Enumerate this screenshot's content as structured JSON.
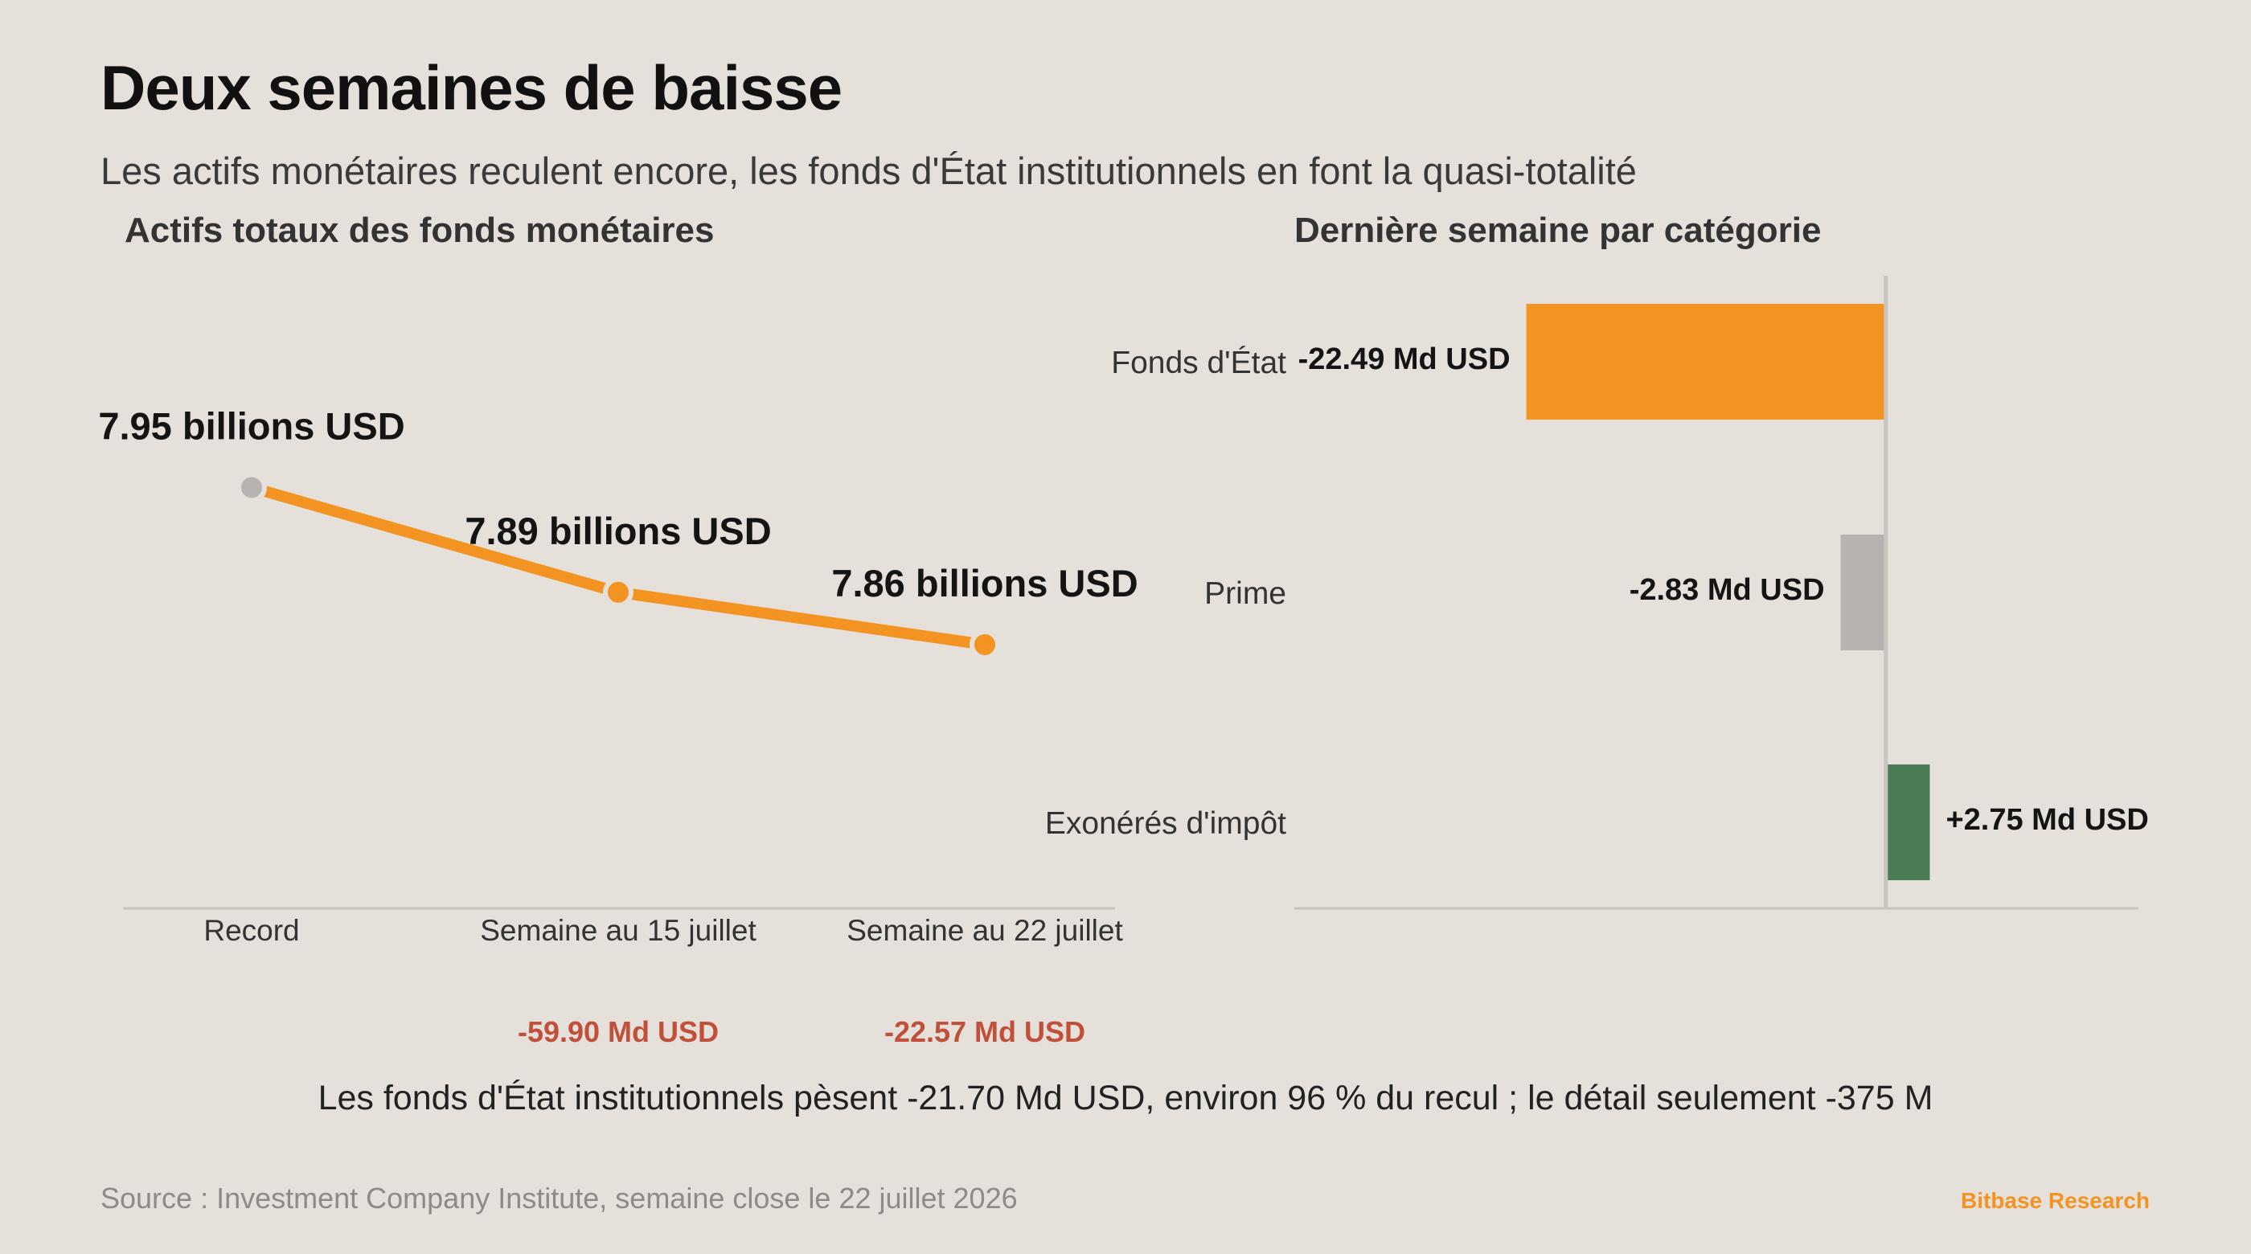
{
  "title": "Deux semaines de baisse",
  "subtitle": "Les actifs monétaires reculent encore, les fonds d'État institutionnels en font la quasi-totalité",
  "caption": "Les fonds d'État institutionnels pèsent -21.70 Md USD, environ 96 % du recul ; le détail seulement -375 M",
  "source": "Source : Investment Company Institute, semaine close le 22 juillet 2026",
  "brand": "Bitbase Research",
  "colors": {
    "background": "#e5e0da",
    "accent": "#f39322",
    "neutral": "#b6b3b0",
    "positive": "#4a7d56",
    "negative_text": "#c0503a",
    "axis": "#c8c3bd"
  },
  "chart_data": [
    {
      "type": "line",
      "title": "Actifs totaux des fonds monétaires",
      "categories": [
        "Record",
        "Semaine au 15 juillet",
        "Semaine au 22 juillet"
      ],
      "values": [
        7.95,
        7.89,
        7.86
      ],
      "unit": "billions USD",
      "value_labels": [
        "7.95 billions USD",
        "7.89 billions USD",
        "7.86 billions USD"
      ],
      "change_labels": [
        "",
        "-59.90 Md USD",
        "-22.57 Md USD"
      ],
      "point_colors": [
        "#b6b3b0",
        "#f39322",
        "#f39322"
      ],
      "ylim": [
        7.79,
        7.97
      ],
      "grid": false
    },
    {
      "type": "bar",
      "orientation": "horizontal",
      "title": "Dernière semaine par catégorie",
      "categories": [
        "Fonds d'État",
        "Prime",
        "Exonérés d'impôt"
      ],
      "values": [
        -22.49,
        -2.83,
        2.75
      ],
      "unit": "Md USD",
      "value_labels": [
        "-22.49 Md USD",
        "-2.83 Md USD",
        "+2.75 Md USD"
      ],
      "bar_colors": [
        "#f39322",
        "#b6b3b0",
        "#4a7d56"
      ],
      "xlim": [
        -37,
        15.8
      ],
      "grid": false
    }
  ]
}
